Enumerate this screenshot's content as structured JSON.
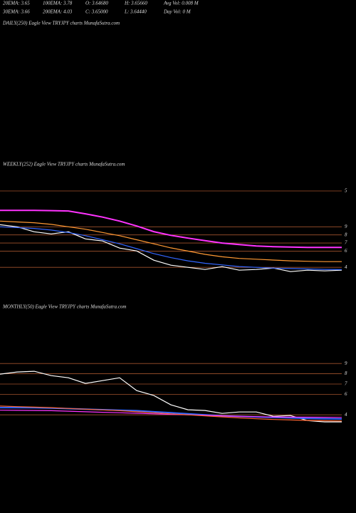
{
  "header": {
    "row1": [
      "20EMA: 3.65",
      "100EMA: 3.78",
      "O: 3.64680",
      "H: 3.65660",
      "Avg Vol: 0.008 M"
    ],
    "row2": [
      "30EMA: 3.66",
      "200EMA: 4.03",
      "C: 3.65000",
      "L: 3.64440",
      "Day Vol: 0 M"
    ],
    "daily_title": "DAILY(250) Eagle  View  TRYJPY charts MunafaSutra.com"
  },
  "chart_data": [
    {
      "type": "line",
      "title": "WEEKLY(252) Eagle  View  TRYJPY charts MunafaSutra.com",
      "annotation": "5",
      "ylim": [
        2.7,
        14.3
      ],
      "yticks": [
        9,
        8,
        7,
        6,
        4
      ],
      "grid": true,
      "grid_color": "#a0522d",
      "series": [
        {
          "color": "#ffffff",
          "values": [
            9.26,
            9.0,
            8.39,
            8.12,
            8.39,
            7.51,
            7.25,
            6.37,
            6.02,
            4.88,
            4.26,
            4.0,
            3.74,
            4.09,
            3.65,
            3.74,
            3.91,
            3.47,
            3.65,
            3.56,
            3.65
          ]
        },
        {
          "color": "#ff33ff",
          "values": [
            11.02,
            11.02,
            11.02,
            11.0,
            10.95,
            10.6,
            10.2,
            9.7,
            9.1,
            8.4,
            7.95,
            7.6,
            7.3,
            7.0,
            6.8,
            6.63,
            6.55,
            6.5,
            6.46,
            6.46,
            6.46
          ]
        },
        {
          "color": "#3366ff",
          "values": [
            9.0,
            8.9,
            8.8,
            8.6,
            8.3,
            7.9,
            7.4,
            6.9,
            6.3,
            5.7,
            5.2,
            4.8,
            4.5,
            4.3,
            4.1,
            4.0,
            3.9,
            3.85,
            3.8,
            3.75,
            3.72
          ]
        },
        {
          "color": "#ff9933",
          "values": [
            9.7,
            9.6,
            9.5,
            9.3,
            9.0,
            8.7,
            8.3,
            7.9,
            7.4,
            6.9,
            6.4,
            6.0,
            5.6,
            5.3,
            5.1,
            5.0,
            4.9,
            4.8,
            4.75,
            4.7,
            4.7
          ]
        }
      ]
    },
    {
      "type": "line",
      "title": "MONTHLY(50) Eagle  View  TRYJPY charts MunafaSutra.com",
      "ylim": [
        2.0,
        10.4
      ],
      "yticks": [
        9,
        8,
        7,
        6,
        4
      ],
      "grid": true,
      "grid_color": "#a0522d",
      "series": [
        {
          "color": "#ffffff",
          "values": [
            7.96,
            8.17,
            8.24,
            7.82,
            7.61,
            7.06,
            7.33,
            7.61,
            6.36,
            5.88,
            4.97,
            4.49,
            4.42,
            4.14,
            4.28,
            4.28,
            3.86,
            3.93,
            3.44,
            3.31,
            3.31
          ]
        },
        {
          "color": "#3366ff",
          "values": [
            4.7,
            4.7,
            4.69,
            4.65,
            4.6,
            4.55,
            4.5,
            4.45,
            4.4,
            4.3,
            4.2,
            4.1,
            4.0,
            3.9,
            3.85,
            3.8,
            3.75,
            3.7,
            3.65,
            3.62,
            3.6
          ]
        },
        {
          "color": "#ff33ff",
          "values": [
            4.45,
            4.44,
            4.42,
            4.4,
            4.35,
            4.3,
            4.25,
            4.2,
            4.15,
            4.1,
            4.05,
            4.0,
            3.95,
            3.9,
            3.85,
            3.82,
            3.8,
            3.78,
            3.77,
            3.76,
            3.75
          ]
        },
        {
          "color": "#ff6633",
          "values": [
            4.85,
            4.8,
            4.75,
            4.7,
            4.62,
            4.55,
            4.48,
            4.4,
            4.3,
            4.2,
            4.1,
            4.0,
            3.9,
            3.8,
            3.7,
            3.62,
            3.55,
            3.5,
            3.45,
            3.42,
            3.4
          ]
        }
      ]
    }
  ]
}
